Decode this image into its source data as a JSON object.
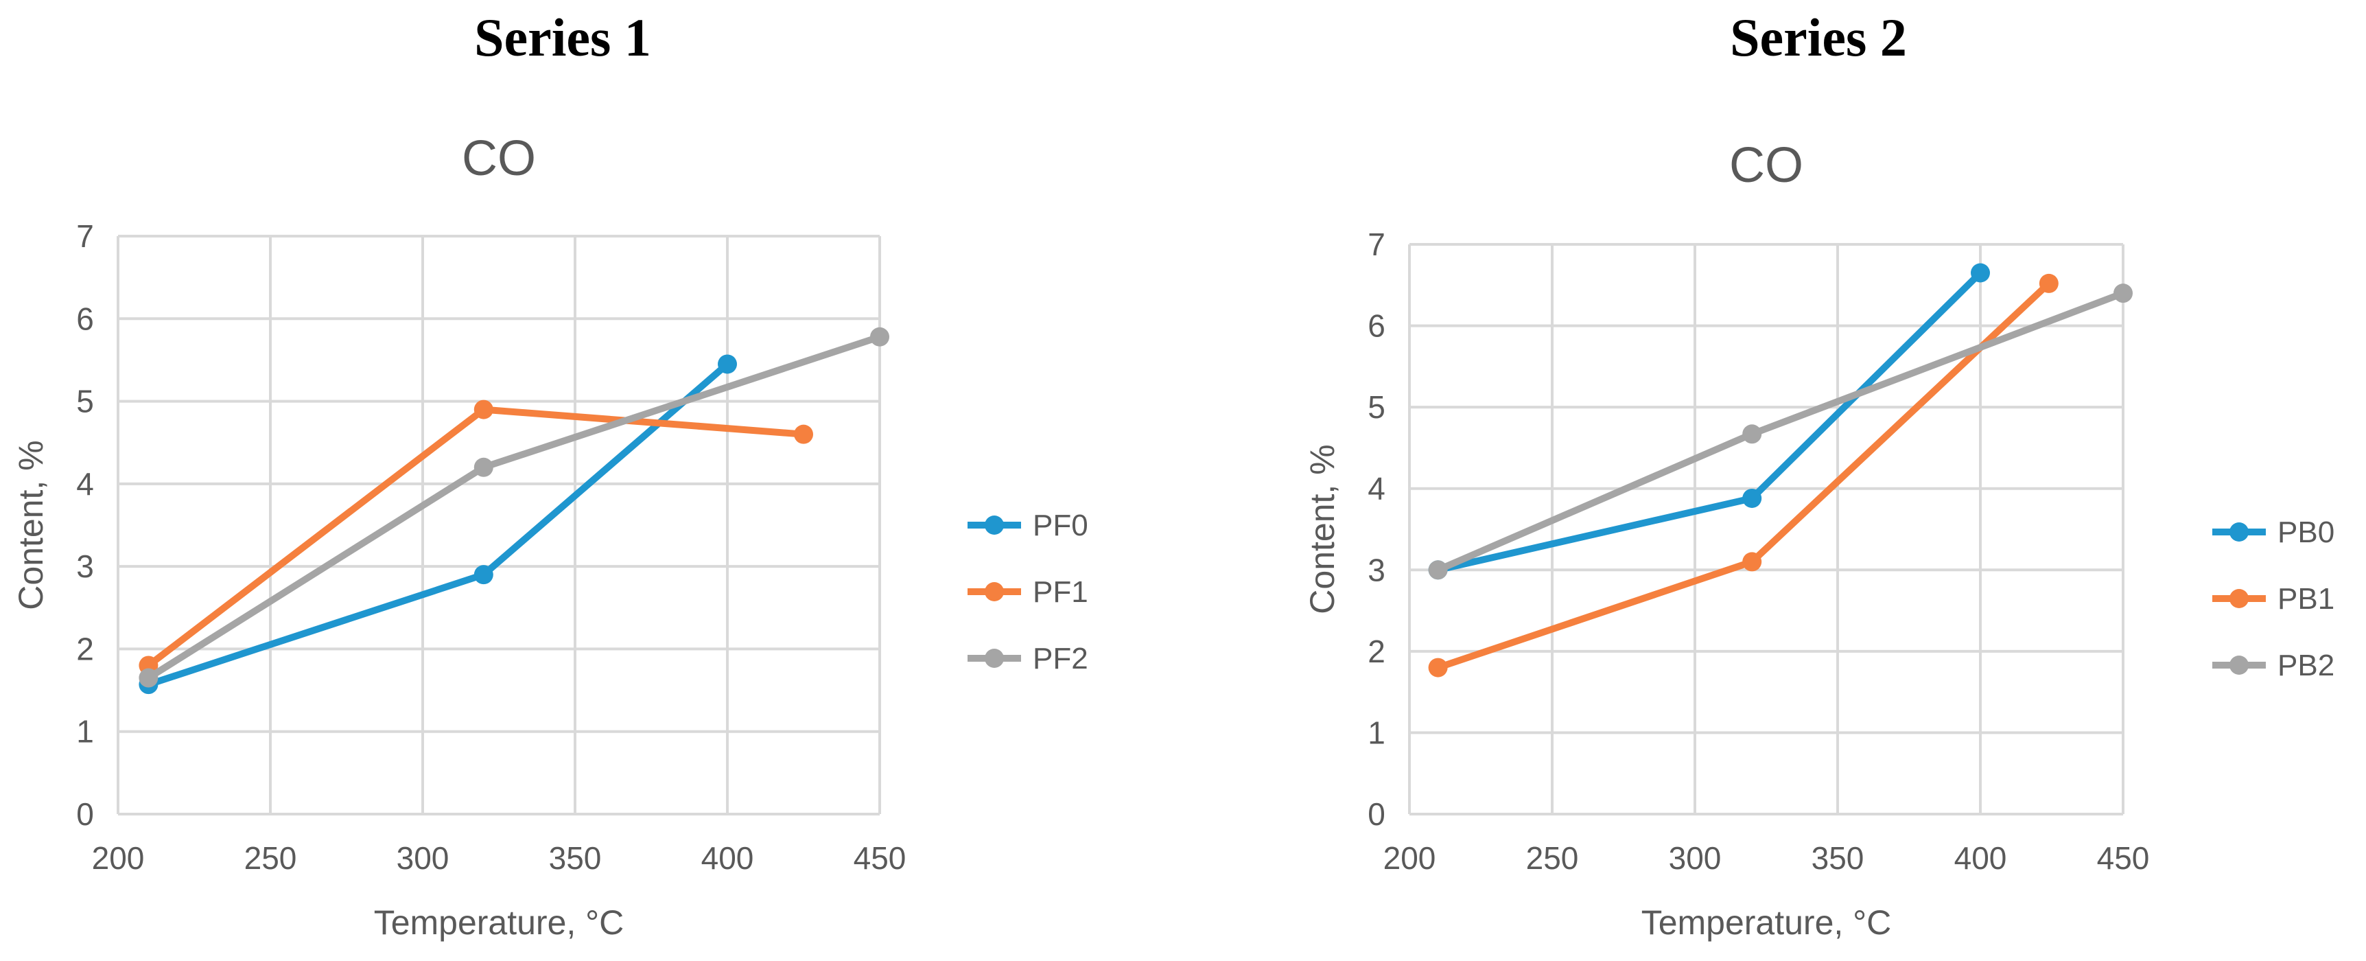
{
  "headings": [
    "Series 1",
    "Series 2"
  ],
  "chart_data": [
    {
      "type": "line",
      "title": "CO",
      "xlabel": "Temperature,  °C",
      "ylabel": "Content, %",
      "xlim": [
        200,
        450
      ],
      "ylim": [
        0,
        7
      ],
      "xticks": [
        200,
        250,
        300,
        350,
        400,
        450
      ],
      "yticks": [
        0,
        1,
        2,
        3,
        4,
        5,
        6,
        7
      ],
      "grid": true,
      "legend_position": "right",
      "series": [
        {
          "name": "PF0",
          "color": "#1f96cf",
          "x": [
            210,
            320,
            400
          ],
          "y": [
            1.57,
            2.9,
            5.45
          ]
        },
        {
          "name": "PF1",
          "color": "#f5803e",
          "x": [
            210,
            320,
            425
          ],
          "y": [
            1.8,
            4.9,
            4.6
          ]
        },
        {
          "name": "PF2",
          "color": "#a5a5a5",
          "x": [
            210,
            320,
            450
          ],
          "y": [
            1.65,
            4.2,
            5.78
          ]
        }
      ]
    },
    {
      "type": "line",
      "title": "CO",
      "xlabel": "Temperature,  °C",
      "ylabel": "Content, %",
      "xlim": [
        200,
        450
      ],
      "ylim": [
        0,
        7
      ],
      "xticks": [
        200,
        250,
        300,
        350,
        400,
        450
      ],
      "yticks": [
        0,
        1,
        2,
        3,
        4,
        5,
        6,
        7
      ],
      "grid": true,
      "legend_position": "right",
      "series": [
        {
          "name": "PB0",
          "color": "#1f96cf",
          "x": [
            210,
            320,
            400
          ],
          "y": [
            3.0,
            3.88,
            6.65
          ]
        },
        {
          "name": "PB1",
          "color": "#f5803e",
          "x": [
            210,
            320,
            424
          ],
          "y": [
            1.8,
            3.1,
            6.52
          ]
        },
        {
          "name": "PB2",
          "color": "#a5a5a5",
          "x": [
            210,
            320,
            450
          ],
          "y": [
            3.0,
            4.67,
            6.4
          ]
        }
      ]
    }
  ]
}
